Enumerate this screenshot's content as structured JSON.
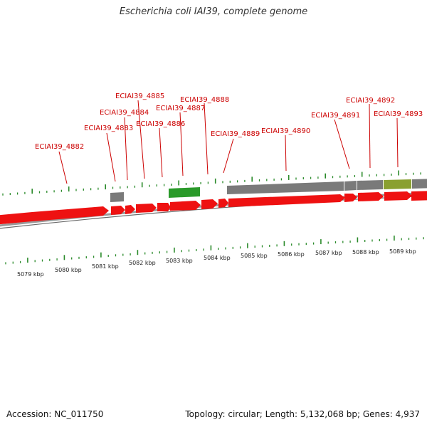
{
  "title": "Escherichia coli IAI39, complete genome",
  "footer": {
    "accession": "Accession: NC_011750",
    "summary": "Topology: circular; Length: 5,132,068 bp; Genes: 4,937"
  },
  "colors": {
    "gene_label": "#cc0000",
    "cds": "#ee1111",
    "gray_feature": "#7a7a7a",
    "green_feature": "#2a9a2a",
    "olive_feature": "#8aa030",
    "tick": "#2a8a2a",
    "backbone": "#888888"
  },
  "gene_labels": [
    {
      "id": "ECIAI39_4882",
      "text": "ECIAI39_4882"
    },
    {
      "id": "ECIAI39_4883",
      "text": "ECIAI39_4883"
    },
    {
      "id": "ECIAI39_4884",
      "text": "ECIAI39_4884"
    },
    {
      "id": "ECIAI39_4885",
      "text": "ECIAI39_4885"
    },
    {
      "id": "ECIAI39_4886",
      "text": "ECIAI39_4886"
    },
    {
      "id": "ECIAI39_4887",
      "text": "ECIAI39_4887"
    },
    {
      "id": "ECIAI39_4888",
      "text": "ECIAI39_4888"
    },
    {
      "id": "ECIAI39_4889",
      "text": "ECIAI39_4889"
    },
    {
      "id": "ECIAI39_4890",
      "text": "ECIAI39_4890"
    },
    {
      "id": "ECIAI39_4891",
      "text": "ECIAI39_4891"
    },
    {
      "id": "ECIAI39_4892",
      "text": "ECIAI39_4892"
    },
    {
      "id": "ECIAI39_4893",
      "text": "ECIAI39_4893"
    }
  ],
  "scale_labels": [
    "5079 kbp",
    "5080 kbp",
    "5081 kbp",
    "5082 kbp",
    "5083 kbp",
    "5084 kbp",
    "5085 kbp",
    "5086 kbp",
    "5087 kbp",
    "5088 kbp",
    "5089 kbp"
  ]
}
